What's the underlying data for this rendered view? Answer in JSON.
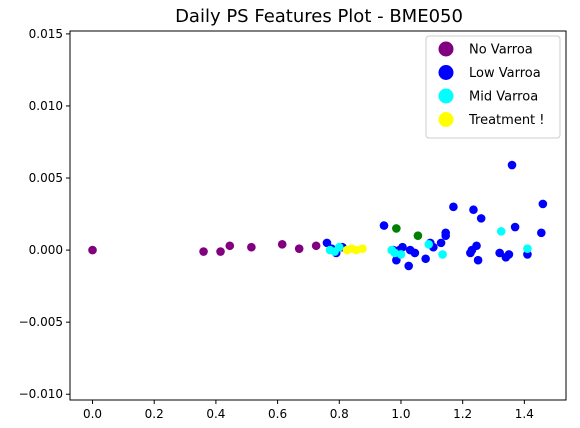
{
  "chart_data": {
    "type": "scatter",
    "title": "Daily PS Features Plot - BME050",
    "xlabel": "",
    "ylabel": "",
    "xlim": [
      -0.073,
      1.535
    ],
    "ylim": [
      -0.0104,
      0.0152
    ],
    "x_ticks": [
      0.0,
      0.2,
      0.4,
      0.6,
      0.8,
      1.0,
      1.2,
      1.4
    ],
    "x_tick_labels": [
      "0.0",
      "0.2",
      "0.4",
      "0.6",
      "0.8",
      "1.0",
      "1.2",
      "1.4"
    ],
    "y_ticks": [
      -0.01,
      -0.005,
      0.0,
      0.005,
      0.01,
      0.015
    ],
    "y_tick_labels": [
      "−0.010",
      "−0.005",
      "0.000",
      "0.005",
      "0.010",
      "0.015"
    ],
    "grid": false,
    "legend_position": "top-right",
    "series": [
      {
        "name": "No Varroa",
        "color": "#800080",
        "points": [
          [
            0.0,
            0.0
          ],
          [
            0.36,
            -0.0001
          ],
          [
            0.415,
            -0.0001
          ],
          [
            0.445,
            0.0003
          ],
          [
            0.515,
            0.0002
          ],
          [
            0.615,
            0.0004
          ],
          [
            0.67,
            0.0001
          ],
          [
            0.725,
            0.0003
          ]
        ]
      },
      {
        "name": "Low Varroa",
        "color": "#0000ff",
        "points": [
          [
            0.76,
            0.0005
          ],
          [
            0.775,
            0.0001
          ],
          [
            0.79,
            -0.0002
          ],
          [
            0.81,
            0.0002
          ],
          [
            0.945,
            0.0017
          ],
          [
            0.975,
            0.0
          ],
          [
            0.985,
            -0.0007
          ],
          [
            0.995,
            0.0
          ],
          [
            1.005,
            0.0002
          ],
          [
            1.025,
            -0.0011
          ],
          [
            1.03,
            0.0
          ],
          [
            1.045,
            -0.0002
          ],
          [
            1.08,
            -0.0006
          ],
          [
            1.095,
            0.0005
          ],
          [
            1.105,
            0.0002
          ],
          [
            1.13,
            0.0005
          ],
          [
            1.145,
            0.0012
          ],
          [
            1.145,
            0.001
          ],
          [
            1.17,
            0.003
          ],
          [
            1.225,
            -0.0002
          ],
          [
            1.23,
            0.0
          ],
          [
            1.235,
            0.0028
          ],
          [
            1.245,
            0.0003
          ],
          [
            1.25,
            -0.0007
          ],
          [
            1.26,
            0.0022
          ],
          [
            1.32,
            -0.0002
          ],
          [
            1.34,
            -0.0005
          ],
          [
            1.35,
            -0.0003
          ],
          [
            1.36,
            0.0059
          ],
          [
            1.37,
            0.0016
          ],
          [
            1.41,
            -0.0003
          ],
          [
            1.455,
            0.0012
          ],
          [
            1.46,
            0.0032
          ]
        ]
      },
      {
        "name": "Mid Varroa",
        "color": "#00ffff",
        "points": [
          [
            0.77,
            0.0
          ],
          [
            0.785,
            -0.0001
          ],
          [
            0.8,
            0.0002
          ],
          [
            0.97,
            0.0
          ],
          [
            0.98,
            -0.0002
          ],
          [
            1.0,
            -0.0003
          ],
          [
            1.09,
            0.0004
          ],
          [
            1.135,
            -0.0003
          ],
          [
            1.325,
            0.0013
          ],
          [
            1.41,
            0.0001
          ]
        ]
      },
      {
        "name": "Treatment !",
        "color": "#ffff00",
        "points": [
          [
            0.825,
            0.0
          ],
          [
            0.84,
            0.0001
          ],
          [
            0.855,
            0.0
          ],
          [
            0.875,
            0.0001
          ]
        ]
      },
      {
        "name": "",
        "color": "#008000",
        "points": [
          [
            0.985,
            0.0015
          ],
          [
            1.055,
            0.001
          ]
        ]
      }
    ]
  }
}
